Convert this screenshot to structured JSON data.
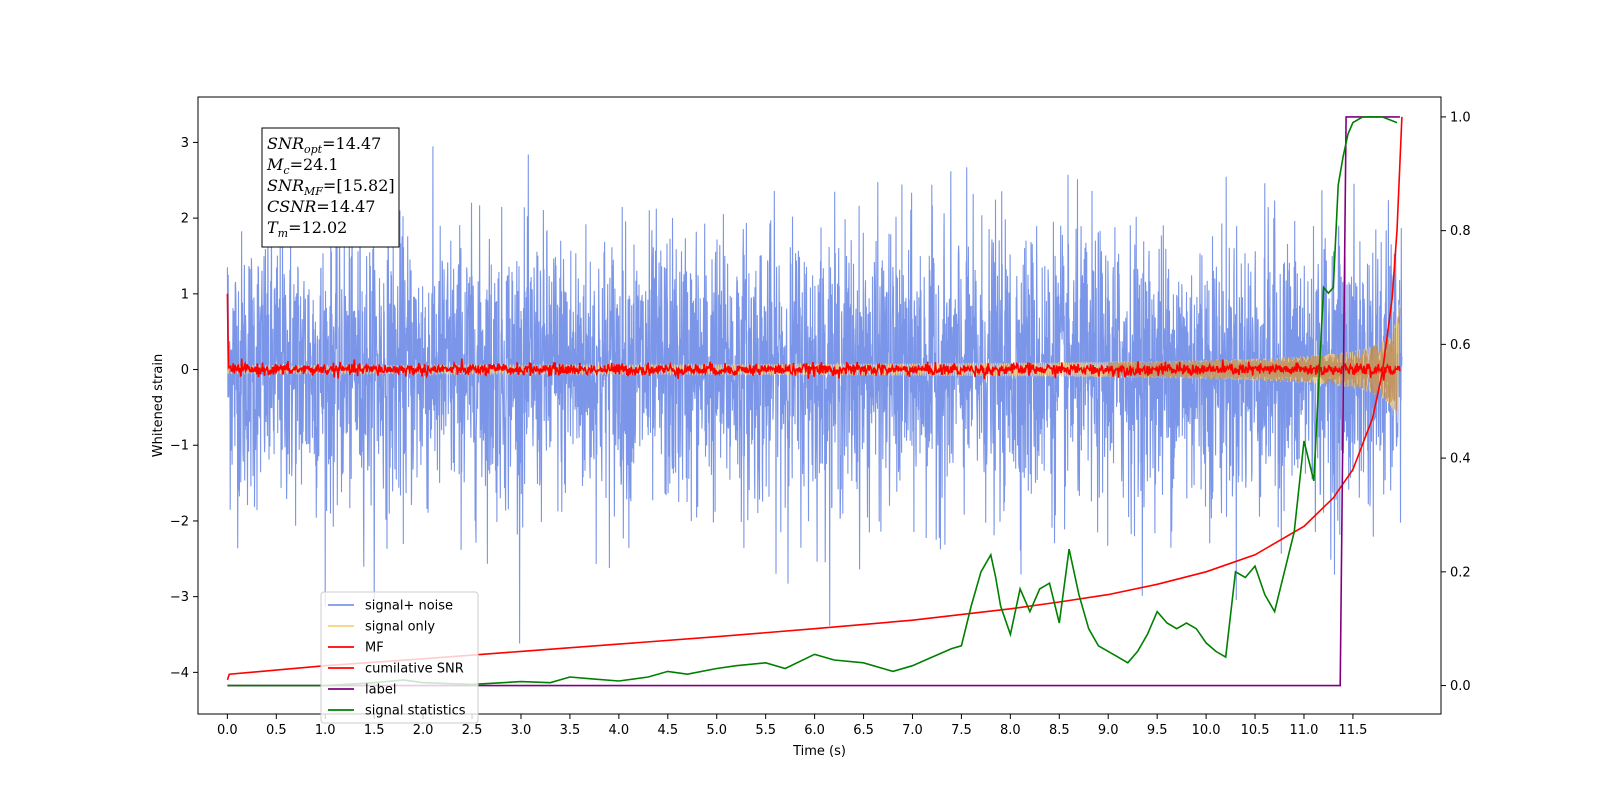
{
  "chart_data": {
    "type": "line",
    "title": "",
    "xlabel": "Time (s)",
    "ylabel": "Whitened strain",
    "y2label": "",
    "xlim": [
      -0.3,
      12.4
    ],
    "ylim": [
      -4.55,
      3.6
    ],
    "y2lim": [
      -0.05,
      1.035
    ],
    "xticks": [
      "0.0",
      "0.5",
      "1.0",
      "1.5",
      "2.0",
      "2.5",
      "3.0",
      "3.5",
      "4.0",
      "4.5",
      "5.0",
      "5.5",
      "6.0",
      "6.5",
      "7.0",
      "7.5",
      "8.0",
      "8.5",
      "9.0",
      "9.5",
      "10.0",
      "10.5",
      "11.0",
      "11.5"
    ],
    "yticks": [
      "−4",
      "−3",
      "−2",
      "−1",
      "0",
      "1",
      "2",
      "3"
    ],
    "y2ticks": [
      "0.0",
      "0.2",
      "0.4",
      "0.6",
      "0.8",
      "1.0"
    ],
    "grid": false,
    "legend_position": "lower-left",
    "annotation": {
      "lines": [
        {
          "base": "SNR",
          "sub": "opt",
          "value": "=14.47"
        },
        {
          "base": "M",
          "sub": "c",
          "value": "=24.1"
        },
        {
          "base": "SNR",
          "sub": "MF",
          "value": "=[15.82]"
        },
        {
          "base": "CSNR",
          "sub": "",
          "value": "=14.47"
        },
        {
          "base": "T",
          "sub": "m",
          "value": "=12.02"
        }
      ]
    },
    "series": [
      {
        "name": "signal+ noise",
        "color": "#7b96e8",
        "axis": "left",
        "kind": "noise",
        "amplitude_std": 0.9,
        "t_start": 0.0,
        "t_end": 12.0
      },
      {
        "name": "signal only",
        "color": "#f7d27a",
        "axis": "left",
        "kind": "chirp",
        "t_coalescence": 12.02,
        "amplitude_end": 1.0
      },
      {
        "name": "MF",
        "color": "#ff0000",
        "axis": "left",
        "kind": "mf",
        "start_value": 1.0,
        "noise_std": 0.04,
        "end_value": 0.1
      },
      {
        "name": "cumilative SNR",
        "color": "#ff0000",
        "axis": "right",
        "x": [
          0.0,
          0.02,
          1.0,
          2.0,
          3.0,
          4.0,
          5.0,
          6.0,
          7.0,
          8.0,
          8.5,
          9.0,
          9.5,
          10.0,
          10.5,
          11.0,
          11.3,
          11.5,
          11.7,
          11.8,
          11.9,
          11.95,
          12.0
        ],
        "y": [
          0.01,
          0.02,
          0.035,
          0.047,
          0.06,
          0.073,
          0.086,
          0.1,
          0.115,
          0.135,
          0.147,
          0.16,
          0.178,
          0.2,
          0.23,
          0.28,
          0.33,
          0.38,
          0.47,
          0.55,
          0.68,
          0.8,
          1.0
        ]
      },
      {
        "name": "label",
        "color": "#800080",
        "axis": "right",
        "x": [
          0.0,
          11.37,
          11.43,
          11.98
        ],
        "y": [
          0.0,
          0.0,
          1.0,
          1.0
        ]
      },
      {
        "name": "signal statistics",
        "color": "#008000",
        "axis": "right",
        "x": [
          0.0,
          1.0,
          1.5,
          1.8,
          2.0,
          2.5,
          3.0,
          3.3,
          3.5,
          3.7,
          4.0,
          4.3,
          4.5,
          4.7,
          5.0,
          5.2,
          5.5,
          5.7,
          6.0,
          6.2,
          6.5,
          6.8,
          7.0,
          7.2,
          7.4,
          7.5,
          7.6,
          7.7,
          7.8,
          7.85,
          7.9,
          8.0,
          8.1,
          8.2,
          8.3,
          8.4,
          8.5,
          8.6,
          8.7,
          8.8,
          8.9,
          9.0,
          9.1,
          9.2,
          9.3,
          9.4,
          9.5,
          9.6,
          9.7,
          9.8,
          9.9,
          10.0,
          10.1,
          10.2,
          10.3,
          10.4,
          10.5,
          10.6,
          10.7,
          10.8,
          10.9,
          11.0,
          11.1,
          11.2,
          11.25,
          11.3,
          11.35,
          11.4,
          11.45,
          11.5,
          11.6,
          11.8,
          11.95
        ],
        "y": [
          0.0,
          0.0,
          0.005,
          0.01,
          0.005,
          0.002,
          0.007,
          0.005,
          0.015,
          0.012,
          0.008,
          0.015,
          0.025,
          0.02,
          0.03,
          0.035,
          0.04,
          0.03,
          0.055,
          0.045,
          0.04,
          0.025,
          0.035,
          0.05,
          0.065,
          0.07,
          0.14,
          0.2,
          0.23,
          0.19,
          0.14,
          0.09,
          0.17,
          0.13,
          0.17,
          0.18,
          0.11,
          0.24,
          0.16,
          0.1,
          0.07,
          0.06,
          0.05,
          0.04,
          0.06,
          0.09,
          0.13,
          0.11,
          0.1,
          0.11,
          0.1,
          0.075,
          0.06,
          0.05,
          0.2,
          0.19,
          0.21,
          0.16,
          0.13,
          0.2,
          0.27,
          0.43,
          0.36,
          0.7,
          0.69,
          0.7,
          0.88,
          0.93,
          0.97,
          0.99,
          1.0,
          1.0,
          0.99
        ]
      }
    ]
  }
}
